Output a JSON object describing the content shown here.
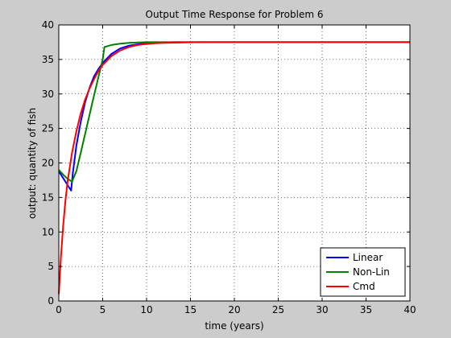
{
  "chart_data": {
    "type": "line",
    "title": "Output Time Response for Problem 6",
    "xlabel": "time (years)",
    "ylabel": "output: quantity of fish",
    "xlim": [
      0,
      40
    ],
    "ylim": [
      0,
      40
    ],
    "xticks": [
      0,
      5,
      10,
      15,
      20,
      25,
      30,
      35,
      40
    ],
    "yticks": [
      0,
      5,
      10,
      15,
      20,
      25,
      30,
      35,
      40
    ],
    "grid": true,
    "legend_position": "bottom-right",
    "series": [
      {
        "name": "Linear",
        "color": "#0000ff",
        "x": [
          0,
          0.5,
          1.0,
          1.4,
          1.6,
          2.0,
          2.5,
          3.0,
          3.5,
          4.0,
          4.5,
          5.0,
          6.0,
          7.0,
          8.0,
          9.0,
          10.0,
          11.0,
          12.0,
          13.0,
          15.0,
          20.0,
          25.0,
          30.0,
          40.0
        ],
        "y": [
          18.8,
          17.8,
          16.8,
          16.0,
          18.5,
          22.5,
          26.0,
          28.8,
          30.9,
          32.5,
          33.6,
          34.5,
          35.8,
          36.6,
          37.0,
          37.2,
          37.35,
          37.4,
          37.45,
          37.5,
          37.5,
          37.5,
          37.5,
          37.5,
          37.5
        ]
      },
      {
        "name": "Non-Lin",
        "color": "#008000",
        "x": [
          0,
          0.5,
          1.0,
          1.5,
          2.0,
          2.5,
          3.0,
          3.5,
          4.0,
          4.5,
          5.0,
          5.2,
          6.0,
          7.0,
          8.0,
          10.0,
          12.0,
          15.0,
          20.0,
          30.0,
          40.0
        ],
        "y": [
          19.0,
          18.3,
          17.7,
          17.3,
          18.8,
          21.5,
          24.2,
          27.0,
          29.7,
          32.4,
          35.0,
          36.8,
          37.1,
          37.3,
          37.4,
          37.5,
          37.5,
          37.5,
          37.5,
          37.5,
          37.5
        ]
      },
      {
        "name": "Cmd",
        "color": "#ff0000",
        "x": [
          0,
          0.25,
          0.5,
          0.75,
          1.0,
          1.5,
          2.0,
          2.5,
          3.0,
          3.5,
          4.0,
          4.5,
          5.0,
          6.0,
          7.0,
          8.0,
          9.0,
          10.0,
          11.0,
          12.0,
          14.0,
          16.0,
          20.0,
          30.0,
          40.0
        ],
        "y": [
          1.0,
          6.5,
          11.0,
          14.5,
          17.3,
          21.4,
          24.6,
          27.2,
          29.2,
          30.8,
          32.1,
          33.3,
          34.2,
          35.5,
          36.3,
          36.8,
          37.1,
          37.25,
          37.35,
          37.4,
          37.45,
          37.5,
          37.5,
          37.5,
          37.5
        ]
      }
    ]
  }
}
